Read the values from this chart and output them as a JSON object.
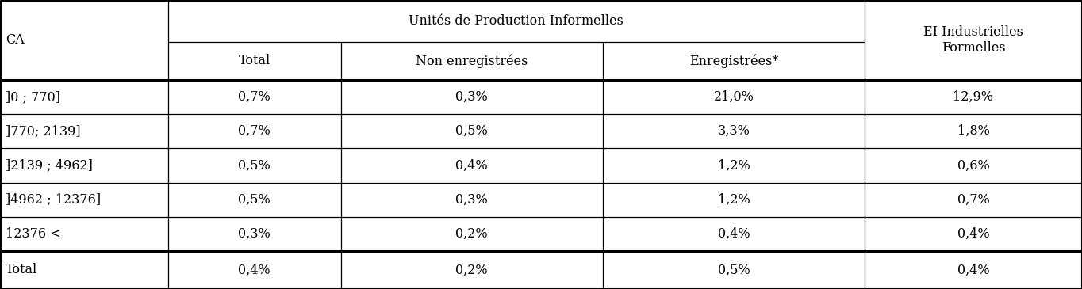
{
  "col_header_row1": [
    "CA",
    "Unités de Production Informelles",
    "EI Industrielles\nFormelles"
  ],
  "col_header_row2": [
    "Total",
    "Non enregistrées",
    "Enregistrées*"
  ],
  "rows": [
    [
      "]0 ; 770]",
      "0,7%",
      "0,3%",
      "21,0%",
      "12,9%"
    ],
    [
      "]770; 2139]",
      "0,7%",
      "0,5%",
      "3,3%",
      "1,8%"
    ],
    [
      "]2139 ; 4962]",
      "0,5%",
      "0,4%",
      "1,2%",
      "0,6%"
    ],
    [
      "]4962 ; 12376]",
      "0,5%",
      "0,3%",
      "1,2%",
      "0,7%"
    ],
    [
      "12376 <",
      "0,3%",
      "0,2%",
      "0,4%",
      "0,4%"
    ]
  ],
  "total_row": [
    "Total",
    "0,4%",
    "0,2%",
    "0,5%",
    "0,4%"
  ],
  "background_color": "#ffffff",
  "line_color": "#000000",
  "font_size": 11.5,
  "header_font_size": 11.5
}
